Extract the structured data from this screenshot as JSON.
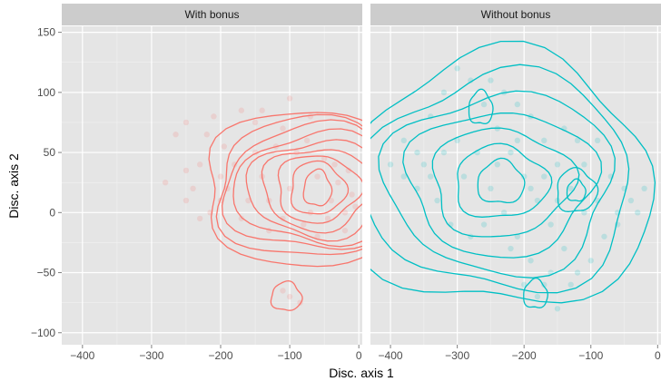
{
  "chart_data": {
    "type": "scatter",
    "xlabel": "Disc. axis 1",
    "ylabel": "Disc. axis 2",
    "xlim": [
      -430,
      5
    ],
    "ylim": [
      -110,
      155
    ],
    "x_ticks": [
      -400,
      -300,
      -200,
      -100,
      0
    ],
    "y_ticks": [
      -100,
      -50,
      0,
      50,
      100,
      150
    ],
    "y_tick_labels": [
      "−100",
      "−50",
      "0",
      "50",
      "100",
      "150"
    ],
    "x_tick_labels": [
      "−400",
      "−300",
      "−200",
      "−100",
      "0"
    ],
    "grid": true,
    "panel_background": "#e5e5e5",
    "strip_background": "#cccccc",
    "panels": [
      {
        "strip": "With bonus",
        "color": "#f8766d",
        "points": [
          [
            -240,
            20
          ],
          [
            -250,
            35
          ],
          [
            -200,
            30
          ],
          [
            -215,
            0
          ],
          [
            -195,
            55
          ],
          [
            -170,
            85
          ],
          [
            -150,
            75
          ],
          [
            -250,
            75
          ],
          [
            -265,
            65
          ],
          [
            -220,
            65
          ],
          [
            -180,
            40
          ],
          [
            -140,
            85
          ],
          [
            -110,
            70
          ],
          [
            -70,
            80
          ],
          [
            -90,
            50
          ],
          [
            -100,
            20
          ],
          [
            -60,
            30
          ],
          [
            -40,
            10
          ],
          [
            -30,
            25
          ],
          [
            -20,
            0
          ],
          [
            -10,
            15
          ],
          [
            -45,
            -5
          ],
          [
            -110,
            -5
          ],
          [
            -80,
            -10
          ],
          [
            -160,
            10
          ],
          [
            -130,
            -15
          ],
          [
            -170,
            -5
          ],
          [
            -280,
            25
          ],
          [
            -230,
            -5
          ],
          [
            -250,
            10
          ],
          [
            -120,
            55
          ],
          [
            -150,
            50
          ],
          [
            -190,
            20
          ],
          [
            -130,
            10
          ],
          [
            -70,
            0
          ],
          [
            -60,
            -20
          ],
          [
            -20,
            -15
          ],
          [
            -100,
            -70
          ],
          [
            -110,
            -65
          ],
          [
            -85,
            -75
          ],
          [
            -140,
            30
          ],
          [
            -100,
            95
          ],
          [
            -75,
            60
          ],
          [
            -50,
            45
          ],
          [
            -35,
            40
          ],
          [
            -15,
            35
          ],
          [
            -5,
            5
          ],
          [
            -200,
            10
          ],
          [
            -230,
            40
          ],
          [
            -210,
            80
          ]
        ],
        "contours": [
          {
            "center": [
              -60,
              20
            ],
            "radii": [
              [
                20,
                15
              ],
              [
                40,
                22
              ],
              [
                60,
                28
              ],
              [
                80,
                34
              ],
              [
                100,
                40
              ],
              [
                118,
                46
              ],
              [
                135,
                52
              ],
              [
                150,
                58
              ],
              [
                170,
                64
              ]
            ]
          },
          {
            "center": [
              -105,
              -70
            ],
            "radii": [
              [
                22,
                12
              ]
            ]
          }
        ]
      },
      {
        "strip": "Without bonus",
        "color": "#00bfc4",
        "points": [
          [
            -400,
            40
          ],
          [
            -380,
            60
          ],
          [
            -360,
            20
          ],
          [
            -340,
            80
          ],
          [
            -320,
            100
          ],
          [
            -300,
            120
          ],
          [
            -280,
            110
          ],
          [
            -260,
            90
          ],
          [
            -240,
            70
          ],
          [
            -220,
            50
          ],
          [
            -200,
            30
          ],
          [
            -180,
            10
          ],
          [
            -160,
            -10
          ],
          [
            -140,
            -30
          ],
          [
            -120,
            -50
          ],
          [
            -100,
            -40
          ],
          [
            -80,
            -20
          ],
          [
            -60,
            0
          ],
          [
            -40,
            10
          ],
          [
            -20,
            20
          ],
          [
            -350,
            40
          ],
          [
            -330,
            10
          ],
          [
            -310,
            -10
          ],
          [
            -290,
            30
          ],
          [
            -270,
            50
          ],
          [
            -250,
            20
          ],
          [
            -230,
            0
          ],
          [
            -210,
            -20
          ],
          [
            -190,
            -40
          ],
          [
            -170,
            -60
          ],
          [
            -150,
            -80
          ],
          [
            -130,
            -60
          ],
          [
            -110,
            40
          ],
          [
            -90,
            60
          ],
          [
            -70,
            30
          ],
          [
            -250,
            110
          ],
          [
            -230,
            100
          ],
          [
            -210,
            90
          ],
          [
            -190,
            80
          ],
          [
            -170,
            60
          ],
          [
            -150,
            40
          ],
          [
            -130,
            20
          ],
          [
            -120,
            60
          ],
          [
            -140,
            70
          ],
          [
            -200,
            -60
          ],
          [
            -180,
            -70
          ],
          [
            -160,
            -50
          ],
          [
            -220,
            -30
          ],
          [
            -260,
            -10
          ],
          [
            -280,
            -20
          ],
          [
            -300,
            60
          ],
          [
            -320,
            50
          ],
          [
            -340,
            30
          ],
          [
            -360,
            50
          ],
          [
            -380,
            30
          ],
          [
            -240,
            40
          ],
          [
            -210,
            60
          ],
          [
            -190,
            20
          ],
          [
            -170,
            30
          ],
          [
            -150,
            10
          ],
          [
            -110,
            0
          ],
          [
            -90,
            10
          ],
          [
            -60,
            -10
          ],
          [
            -50,
            20
          ],
          [
            -30,
            0
          ]
        ],
        "contours": [
          {
            "center": [
              -235,
              25
            ],
            "radii": [
              [
                35,
                18
              ],
              [
                70,
                30
              ],
              [
                105,
                45
              ],
              [
                140,
                60
              ],
              [
                170,
                75
              ],
              [
                200,
                90
              ],
              [
                230,
                105
              ]
            ]
          },
          {
            "center": [
              -122,
              18
            ],
            "radii": [
              [
                14,
                9
              ],
              [
                30,
                18
              ]
            ]
          },
          {
            "center": [
              -265,
              87
            ],
            "radii": [
              [
                18,
                14
              ]
            ]
          },
          {
            "center": [
              -183,
              -68
            ],
            "radii": [
              [
                18,
                12
              ]
            ]
          }
        ]
      }
    ]
  }
}
